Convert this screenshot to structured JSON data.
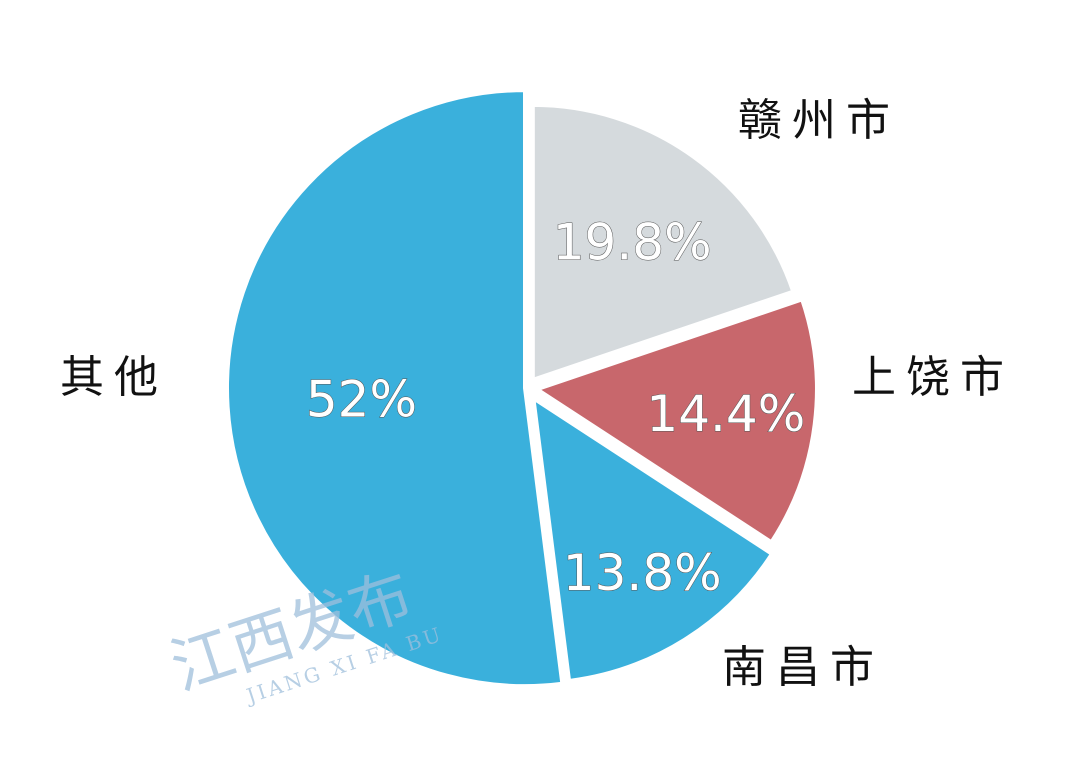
{
  "chart_data": {
    "type": "pie",
    "title": "",
    "start_angle": "12 o'clock, clockwise",
    "slices": [
      {
        "label": "赣州市",
        "value": 19.8,
        "value_label": "19.8%",
        "color": "#D5DADD"
      },
      {
        "label": "上饶市",
        "value": 14.4,
        "value_label": "14.4%",
        "color": "#C8676C"
      },
      {
        "label": "南昌市",
        "value": 13.8,
        "value_label": "13.8%",
        "color": "#3AB0DC"
      },
      {
        "label": "其他",
        "value": 52,
        "value_label": "52%",
        "color": "#3AB0DC"
      }
    ],
    "legend": "none"
  },
  "watermark": {
    "title": "江西发布",
    "subtitle": "JIANG XI FA BU",
    "color": "#9fbfdc"
  }
}
